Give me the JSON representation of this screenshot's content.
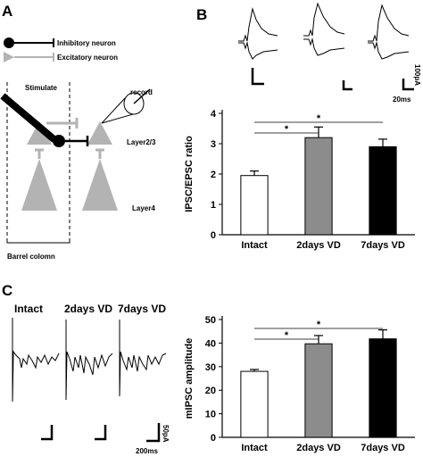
{
  "panels": {
    "A": "A",
    "B": "B",
    "C": "C"
  },
  "panel_a": {
    "legend_inhibitory": "Inhibitory neuron",
    "legend_excitatory": "Excitatory neuron",
    "stimulate": "Stimulate",
    "record": "record",
    "layer23": "Layer2/3",
    "layer4": "Layer4",
    "barrel_column": "Barrel colomn"
  },
  "panel_b_traces": {
    "scale_y": "100pA",
    "scale_x": "20ms"
  },
  "panel_c_traces": {
    "label_intact": "Intact",
    "label_2days": "2days VD",
    "label_7days": "7days VD",
    "scale_y": "50pA",
    "scale_x": "200ms"
  },
  "chart_data": [
    {
      "id": "B",
      "type": "bar",
      "ylabel": "IPSC/EPSC ratio",
      "categories": [
        "Intact",
        "2days VD",
        "7days VD"
      ],
      "values": [
        1.95,
        3.2,
        2.9
      ],
      "errors": [
        0.15,
        0.35,
        0.25
      ],
      "ylim": [
        0,
        4
      ],
      "yticks": [
        "0",
        "1",
        "2",
        "3",
        "4"
      ],
      "bar_colors": [
        "#ffffff",
        "#8c8c8c",
        "#000000"
      ],
      "significance": [
        {
          "from": 0,
          "to": 1,
          "label": "*"
        },
        {
          "from": 0,
          "to": 2,
          "label": "*"
        }
      ]
    },
    {
      "id": "C",
      "type": "bar",
      "ylabel": "mIPSC amplitude",
      "categories": [
        "Intact",
        "2days VD",
        "7days VD"
      ],
      "values": [
        28,
        39.7,
        41.8
      ],
      "errors": [
        0.8,
        3.5,
        3.8
      ],
      "ylim": [
        0,
        50
      ],
      "yticks": [
        "0",
        "10",
        "20",
        "30",
        "40",
        "50"
      ],
      "bar_colors": [
        "#ffffff",
        "#8c8c8c",
        "#000000"
      ],
      "significance": [
        {
          "from": 0,
          "to": 1,
          "label": "*"
        },
        {
          "from": 0,
          "to": 2,
          "label": "*"
        }
      ]
    }
  ]
}
